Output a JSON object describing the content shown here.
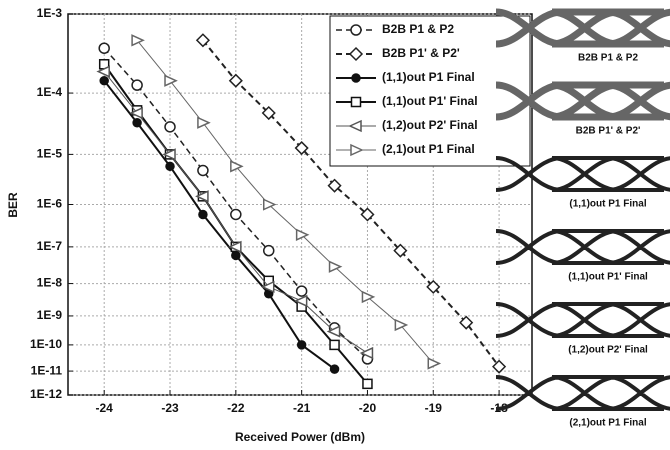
{
  "chart_data": {
    "type": "line",
    "xlabel": "Received Power (dBm)",
    "ylabel": "BER",
    "xlim": [
      -24.55,
      -17.5
    ],
    "xticks": [
      -24,
      -23,
      -22,
      -21,
      -20,
      -19,
      -18
    ],
    "ylim": [
      1e-12,
      0.001
    ],
    "yscale": "ber",
    "yticks": [
      {
        "value": 0.001,
        "label": "1E-3"
      },
      {
        "value": 0.0001,
        "label": "1E-4"
      },
      {
        "value": 1e-05,
        "label": "1E-5"
      },
      {
        "value": 1e-06,
        "label": "1E-6"
      },
      {
        "value": 1e-07,
        "label": "1E-7"
      },
      {
        "value": 1e-08,
        "label": "1E-8"
      },
      {
        "value": 1e-09,
        "label": "1E-9"
      },
      {
        "value": 1e-10,
        "label": "1E-10"
      },
      {
        "value": 1e-11,
        "label": "1E-11"
      },
      {
        "value": 1e-12,
        "label": "1E-12"
      }
    ],
    "grid": true,
    "legend": "upper right",
    "series": [
      {
        "name": "B2B P1 & P2",
        "color": "#222",
        "marker": "circle-open",
        "dash": true,
        "width": 1.5,
        "x": [
          -24,
          -23.5,
          -23,
          -22.5,
          -22,
          -21.5,
          -21,
          -20.5,
          -20
        ],
        "values": [
          0.0004,
          0.00013,
          3e-05,
          5e-06,
          6e-07,
          8e-08,
          6e-09,
          4e-10,
          3e-11
        ]
      },
      {
        "name": "B2B P1' & P2'",
        "color": "#222",
        "marker": "diamond-open",
        "dash": true,
        "width": 2,
        "x": [
          -22.5,
          -22,
          -21.5,
          -21,
          -20.5,
          -20,
          -19.5,
          -19,
          -18.5,
          -18
        ],
        "values": [
          0.0005,
          0.00015,
          5e-05,
          1.3e-05,
          2.5e-06,
          6e-07,
          8e-08,
          8e-09,
          6e-10,
          1.5e-11
        ]
      },
      {
        "name": "(1,1)out P1 Final",
        "color": "#111",
        "marker": "circle-filled",
        "dash": false,
        "width": 2,
        "x": [
          -24,
          -23.5,
          -23,
          -22.5,
          -22,
          -21.5,
          -21,
          -20.5
        ],
        "values": [
          0.00015,
          3.5e-05,
          6e-06,
          6e-07,
          6e-08,
          5e-09,
          1e-10,
          1.2e-11
        ]
      },
      {
        "name": "(1,1)out P1' Final",
        "color": "#111",
        "marker": "square-open",
        "dash": false,
        "width": 2,
        "x": [
          -24,
          -23.5,
          -23,
          -22.5,
          -22,
          -21.5,
          -21,
          -20.5,
          -20
        ],
        "values": [
          0.00025,
          5.5e-05,
          1e-05,
          1.5e-06,
          1e-07,
          1.2e-08,
          2e-09,
          1e-10,
          3e-12
        ]
      },
      {
        "name": "(1,2)out P2' Final",
        "color": "#555",
        "marker": "triangle-left",
        "dash": false,
        "width": 1,
        "x": [
          -24,
          -23.5,
          -23,
          -22.5,
          -22,
          -21.5,
          -21,
          -20.5,
          -20
        ],
        "values": [
          0.0002,
          5e-05,
          1e-05,
          1.5e-06,
          1e-07,
          8e-09,
          3e-09,
          3e-10,
          5e-11
        ]
      },
      {
        "name": "(2,1)out P1 Final",
        "color": "#666",
        "marker": "triangle-right",
        "dash": false,
        "width": 1,
        "x": [
          -23.5,
          -23,
          -22.5,
          -22,
          -21.5,
          -21,
          -20.5,
          -20,
          -19.5,
          -19
        ],
        "values": [
          0.0005,
          0.00015,
          3.5e-05,
          6e-06,
          1e-06,
          2e-07,
          3e-08,
          4e-09,
          5e-10,
          2e-11
        ]
      }
    ],
    "eye_labels": [
      "B2B P1 & P2",
      "B2B P1' & P2'",
      "(1,1)out P1 Final",
      "(1,1)out P1' Final",
      "(1,2)out P2' Final",
      "(2,1)out P1 Final"
    ]
  }
}
